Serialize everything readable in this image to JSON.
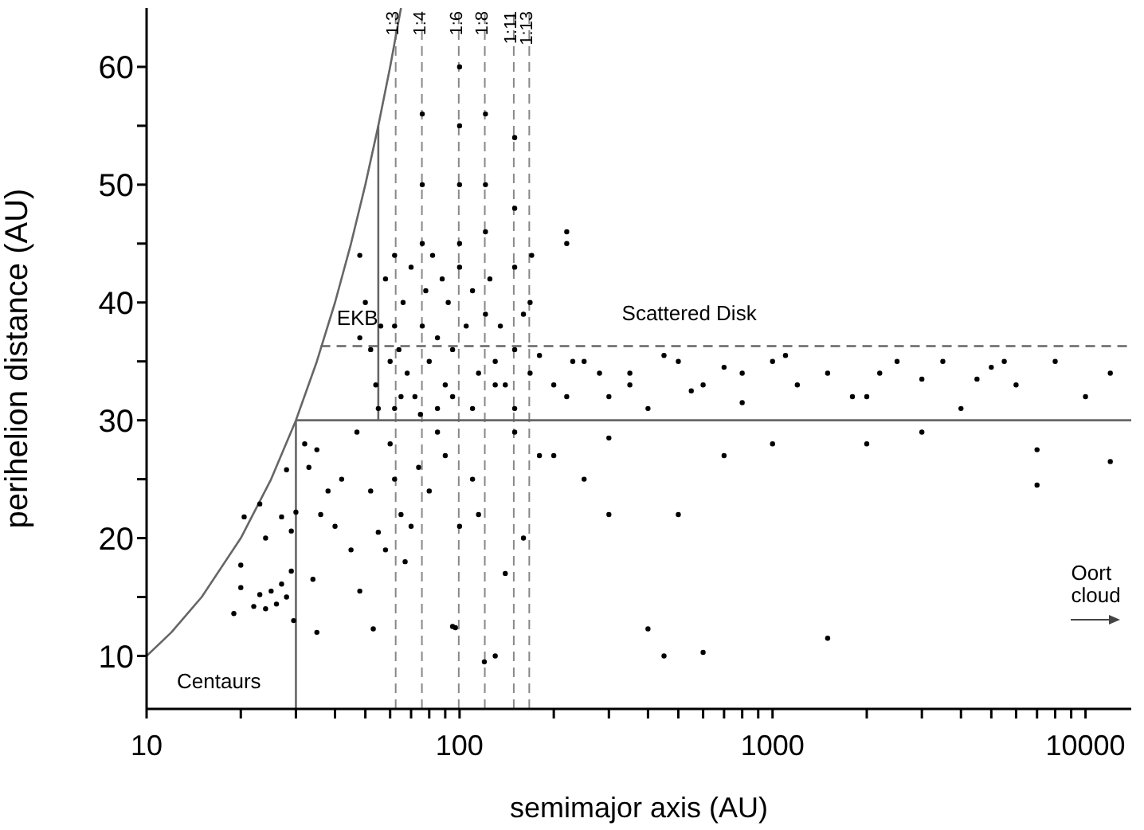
{
  "chart_data": {
    "type": "scatter",
    "xlabel": "semimajor axis (AU)",
    "ylabel": "perihelion distance (AU)",
    "log": "x",
    "xlim": [
      10,
      14000
    ],
    "ylim": [
      5.5,
      65
    ],
    "xticks": [
      10,
      {
        "value": 20,
        "label": null
      },
      {
        "value": 30,
        "label": null
      },
      {
        "value": 40,
        "label": null
      },
      {
        "value": 50,
        "label": null
      },
      {
        "value": 60,
        "label": null
      },
      {
        "value": 70,
        "label": null
      },
      {
        "value": 80,
        "label": null
      },
      {
        "value": 90,
        "label": null
      },
      100,
      {
        "value": 200,
        "label": null
      },
      {
        "value": 300,
        "label": null
      },
      {
        "value": 400,
        "label": null
      },
      {
        "value": 500,
        "label": null
      },
      {
        "value": 600,
        "label": null
      },
      {
        "value": 700,
        "label": null
      },
      {
        "value": 800,
        "label": null
      },
      {
        "value": 900,
        "label": null
      },
      1000,
      {
        "value": 2000,
        "label": null
      },
      {
        "value": 3000,
        "label": null
      },
      {
        "value": 4000,
        "label": null
      },
      {
        "value": 5000,
        "label": null
      },
      {
        "value": 6000,
        "label": null
      },
      {
        "value": 7000,
        "label": null
      },
      {
        "value": 8000,
        "label": null
      },
      {
        "value": 9000,
        "label": null
      },
      10000
    ],
    "yticks": [
      10,
      {
        "value": 15,
        "label": null
      },
      20,
      {
        "value": 25,
        "label": null
      },
      30,
      {
        "value": 35,
        "label": null
      },
      40,
      {
        "value": 45,
        "label": null
      },
      50,
      {
        "value": 55,
        "label": null
      },
      60
    ],
    "marker": "circle",
    "series": [
      {
        "type": "line",
        "color": "#666666",
        "line_style": "solid",
        "marker": "none",
        "x": [
          10,
          12,
          15,
          20,
          25,
          30,
          35,
          40,
          45,
          50,
          55,
          60,
          65
        ],
        "values": [
          10,
          12,
          15,
          20,
          25,
          30,
          35,
          40,
          45,
          50,
          55,
          60,
          65
        ]
      },
      {
        "type": "line",
        "color": "#666666",
        "line_style": "solid",
        "marker": "none",
        "x": [
          30,
          30
        ],
        "values": [
          5.5,
          30
        ]
      },
      {
        "type": "line",
        "color": "#666666",
        "line_style": "solid",
        "marker": "none",
        "x": [
          30,
          14000
        ],
        "values": [
          30,
          30
        ]
      },
      {
        "type": "line",
        "color": "#666666",
        "line_style": "solid",
        "marker": "none",
        "x": [
          55,
          55
        ],
        "values": [
          30,
          55
        ]
      },
      {
        "type": "line",
        "color": "#666666",
        "line_style": "dashed",
        "marker": "none",
        "x": [
          36,
          14000
        ],
        "values": [
          36.3,
          36.3
        ]
      },
      {
        "color": "#000000",
        "x": [
          19,
          20,
          20,
          22,
          23,
          24,
          24,
          23,
          25,
          26,
          27,
          27,
          28,
          29,
          30,
          29,
          29.5,
          28,
          20.5,
          32,
          33,
          35,
          36,
          38,
          34,
          35,
          40,
          42,
          45,
          47,
          48,
          52,
          53,
          55,
          58,
          60,
          62,
          65,
          67,
          70,
          74,
          80,
          85,
          90,
          95,
          97,
          100,
          110,
          115,
          120,
          130,
          140,
          150,
          160,
          200,
          250,
          300,
          400,
          450,
          500,
          600,
          700,
          1000,
          1500,
          2000,
          3000,
          7000,
          7000,
          12000,
          300,
          180,
          48,
          50,
          52,
          54,
          56,
          58,
          60,
          62,
          62,
          62,
          64,
          66,
          68,
          70,
          72,
          76,
          76,
          76,
          76,
          78,
          80,
          82,
          85,
          88,
          90,
          92,
          95,
          100,
          100,
          100,
          100,
          100,
          105,
          110,
          115,
          121,
          121,
          121,
          121,
          125,
          130,
          135,
          140,
          150,
          150,
          150,
          150,
          160,
          168,
          168,
          48,
          55,
          65,
          75,
          85,
          95,
          110,
          130,
          150,
          220,
          220,
          220,
          170,
          200,
          250,
          300,
          350,
          400,
          500,
          600,
          700,
          800,
          1000,
          1200,
          1500,
          2000,
          2500,
          3000,
          4000,
          5000,
          6000,
          8000,
          10000,
          12000,
          180,
          230,
          280,
          350,
          450,
          550,
          800,
          1100,
          1800,
          2200,
          3500,
          4500,
          5500
        ],
        "values": [
          13.6,
          15.8,
          17.7,
          14.2,
          15.2,
          14,
          20,
          22.9,
          15.5,
          14.4,
          21.8,
          16.1,
          15,
          17.2,
          22.2,
          20.6,
          13,
          25.8,
          21.8,
          28,
          26,
          27.5,
          22,
          24,
          16.5,
          12,
          21,
          25,
          19,
          29,
          15.5,
          24,
          12.3,
          20.5,
          19,
          28,
          25,
          22,
          18,
          21,
          26,
          24,
          29,
          27,
          12.5,
          12.4,
          21,
          25,
          22,
          9.5,
          10,
          17,
          29,
          20,
          27,
          25,
          22,
          12.3,
          10,
          22,
          10.3,
          27,
          28,
          11.5,
          28,
          29,
          24.5,
          27.5,
          26.5,
          28.5,
          27,
          44,
          40,
          36,
          33,
          38,
          42,
          35,
          31,
          38,
          44,
          36,
          40,
          34,
          43,
          32,
          38,
          56,
          50,
          45,
          41,
          35,
          44,
          37,
          42,
          33,
          40,
          36,
          43,
          60,
          55,
          50,
          45,
          38,
          41,
          34,
          39,
          56,
          50,
          46,
          42,
          35,
          38,
          33,
          36,
          54,
          48,
          43,
          39,
          34,
          40,
          37,
          31,
          32,
          30.5,
          31,
          32,
          31,
          33,
          31,
          32,
          46,
          45,
          44,
          33,
          35,
          32,
          34,
          31,
          35,
          33,
          34.5,
          31.5,
          35,
          33,
          34,
          32,
          35,
          33.5,
          31,
          34.5,
          33,
          35,
          32,
          34,
          35.5,
          35,
          34,
          33,
          35.5,
          32.5,
          34,
          35.5,
          32,
          34,
          35,
          33.5,
          35
        ]
      }
    ],
    "ref_lines": [
      {
        "axis": "x",
        "value": 62.5,
        "line_style": "dashed",
        "color": "#888888"
      },
      {
        "axis": "x",
        "value": 75.8,
        "line_style": "dashed",
        "color": "#888888"
      },
      {
        "axis": "x",
        "value": 99.4,
        "line_style": "dashed",
        "color": "#888888"
      },
      {
        "axis": "x",
        "value": 120.4,
        "line_style": "dashed",
        "color": "#888888"
      },
      {
        "axis": "x",
        "value": 149,
        "line_style": "dashed",
        "color": "#888888"
      },
      {
        "axis": "x",
        "value": 167,
        "line_style": "dashed",
        "color": "#888888"
      }
    ],
    "annotations": [
      "EKB",
      "Scattered Disk",
      "Centaurs",
      "Oort cloud",
      {
        "text": "1:3",
        "x": 62.5
      },
      {
        "text": "1:4",
        "x": 75.8
      },
      {
        "text": "1:6",
        "x": 99.4
      },
      {
        "text": "1:8",
        "x": 120.4
      },
      {
        "text": "1:11",
        "x": 149
      },
      {
        "text": "1:13",
        "x": 167
      }
    ]
  }
}
